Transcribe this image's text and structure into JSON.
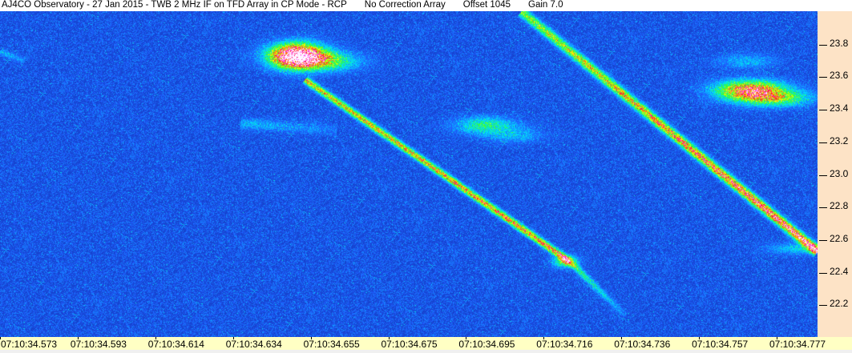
{
  "header": {
    "title": "AJ4CO Observatory - 27 Jan 2015 - TWB 2 MHz IF on TFD Array in CP Mode - RCP",
    "correction": "No Correction Array",
    "offset": "Offset 1045",
    "gain": "Gain 7.0"
  },
  "chart_data": {
    "type": "heatmap",
    "title": "",
    "xlabel": "",
    "ylabel": "",
    "x_ticks": [
      "07:10:34.573",
      "07:10:34.593",
      "07:10:34.614",
      "07:10:34.634",
      "07:10:34.655",
      "07:10:34.675",
      "07:10:34.695",
      "07:10:34.716",
      "07:10:34.736",
      "07:10:34.757",
      "07:10:34.777"
    ],
    "y_ticks": [
      "23.8",
      "23.6",
      "23.4",
      "23.2",
      "23.0",
      "22.8",
      "22.6",
      "22.4",
      "22.2"
    ],
    "ylim": [
      22.0,
      24.0
    ],
    "y_axis_side": "right",
    "colormap": [
      "#0a1e8c",
      "#1f5fff",
      "#00e0ff",
      "#30ff30",
      "#ffff00",
      "#ff2020",
      "#ff40ff",
      "#ffffff"
    ]
  }
}
